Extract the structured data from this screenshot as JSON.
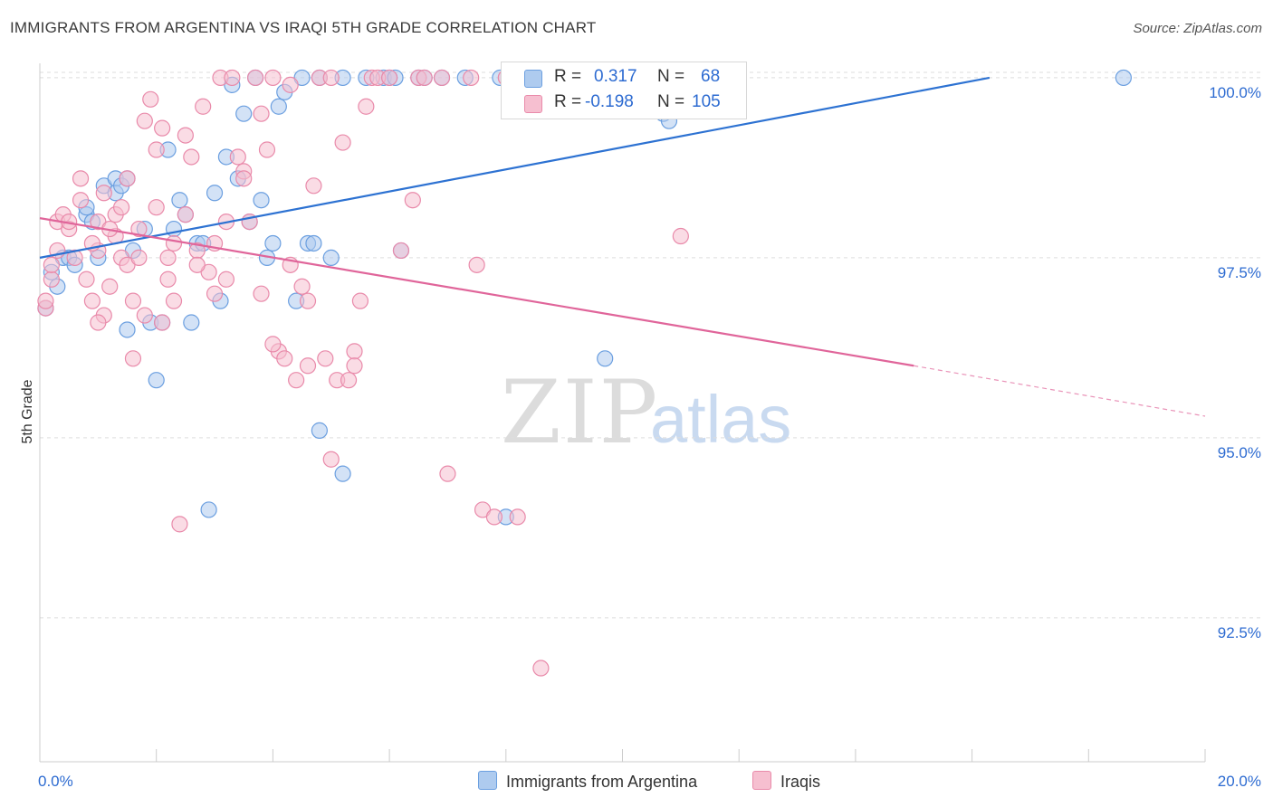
{
  "header": {
    "title": "IMMIGRANTS FROM ARGENTINA VS IRAQI 5TH GRADE CORRELATION CHART",
    "source": "Source: ZipAtlas.com"
  },
  "colors": {
    "blue_fill": "#aecbef",
    "blue_stroke": "#6b9fe0",
    "blue_line": "#2d72d2",
    "pink_fill": "#f6bfd0",
    "pink_stroke": "#e98aaa",
    "pink_line": "#e0659a",
    "value_blue": "#2d6bd1",
    "grid": "#dddddd"
  },
  "legend": {
    "rows": [
      {
        "r_label": "R =",
        "r_value": "0.317",
        "n_label": "N =",
        "n_value": "68"
      },
      {
        "r_label": "R =",
        "r_value": "-0.198",
        "n_label": "N =",
        "n_value": "105"
      }
    ]
  },
  "bottom_legend": {
    "series_a": "Immigrants from Argentina",
    "series_b": "Iraqis"
  },
  "watermark": {
    "zip": "ZIP",
    "atlas": "atlas"
  },
  "chart_data": {
    "type": "scatter",
    "title": "IMMIGRANTS FROM ARGENTINA VS IRAQI 5TH GRADE CORRELATION CHART",
    "xlabel": "",
    "ylabel": "5th Grade",
    "xlim": [
      0,
      20
    ],
    "ylim": [
      90.5,
      100.2
    ],
    "x_tick_labels": [
      "0.0%",
      "20.0%"
    ],
    "y_ticks": [
      92.5,
      95.0,
      97.5,
      100.0
    ],
    "y_tick_labels": [
      "92.5%",
      "95.0%",
      "97.5%",
      "100.0%"
    ],
    "series": [
      {
        "name": "Immigrants from Argentina",
        "R": 0.317,
        "N": 68,
        "trend": {
          "x": [
            0,
            16.3
          ],
          "y": [
            97.5,
            100.0
          ]
        },
        "points": [
          [
            0.1,
            96.8
          ],
          [
            0.2,
            97.3
          ],
          [
            0.3,
            97.1
          ],
          [
            0.4,
            97.5
          ],
          [
            0.5,
            97.5
          ],
          [
            0.6,
            97.4
          ],
          [
            0.8,
            98.1
          ],
          [
            0.8,
            98.2
          ],
          [
            0.9,
            98.0
          ],
          [
            1.0,
            97.5
          ],
          [
            1.1,
            98.5
          ],
          [
            1.3,
            98.6
          ],
          [
            1.3,
            98.4
          ],
          [
            1.4,
            98.5
          ],
          [
            1.5,
            98.6
          ],
          [
            1.6,
            97.6
          ],
          [
            1.8,
            97.9
          ],
          [
            1.9,
            96.6
          ],
          [
            2.0,
            95.8
          ],
          [
            2.1,
            96.6
          ],
          [
            2.2,
            99.0
          ],
          [
            2.3,
            97.9
          ],
          [
            2.4,
            98.3
          ],
          [
            2.5,
            98.1
          ],
          [
            2.6,
            96.6
          ],
          [
            2.7,
            97.7
          ],
          [
            2.8,
            97.7
          ],
          [
            2.9,
            94.0
          ],
          [
            3.0,
            98.4
          ],
          [
            3.1,
            96.9
          ],
          [
            3.2,
            98.9
          ],
          [
            3.3,
            99.9
          ],
          [
            3.4,
            98.6
          ],
          [
            3.5,
            99.5
          ],
          [
            3.6,
            98.0
          ],
          [
            3.7,
            100.0
          ],
          [
            3.8,
            98.3
          ],
          [
            3.9,
            97.5
          ],
          [
            4.0,
            97.7
          ],
          [
            4.1,
            99.6
          ],
          [
            4.2,
            99.8
          ],
          [
            4.4,
            96.9
          ],
          [
            4.5,
            100.0
          ],
          [
            4.6,
            97.7
          ],
          [
            4.7,
            97.7
          ],
          [
            4.8,
            100.0
          ],
          [
            4.8,
            95.1
          ],
          [
            5.0,
            97.5
          ],
          [
            5.2,
            100.0
          ],
          [
            5.2,
            94.5
          ],
          [
            5.6,
            100.0
          ],
          [
            5.9,
            100.0
          ],
          [
            6.0,
            100.0
          ],
          [
            6.1,
            100.0
          ],
          [
            6.2,
            97.6
          ],
          [
            6.5,
            100.0
          ],
          [
            6.6,
            100.0
          ],
          [
            6.9,
            100.0
          ],
          [
            7.3,
            100.0
          ],
          [
            7.9,
            100.0
          ],
          [
            8.0,
            93.9
          ],
          [
            8.2,
            100.0
          ],
          [
            9.4,
            100.0
          ],
          [
            9.7,
            96.1
          ],
          [
            10.7,
            99.5
          ],
          [
            10.8,
            99.4
          ],
          [
            18.6,
            100.0
          ],
          [
            1.5,
            96.5
          ]
        ]
      },
      {
        "name": "Iraqis",
        "R": -0.198,
        "N": 105,
        "trend": {
          "x": [
            0,
            15.0
          ],
          "y": [
            98.05,
            96.0
          ]
        },
        "trend_dashed": {
          "x": [
            15.0,
            20.0
          ],
          "y": [
            96.0,
            95.3
          ]
        },
        "points": [
          [
            0.1,
            96.8
          ],
          [
            0.2,
            97.2
          ],
          [
            0.3,
            97.6
          ],
          [
            0.3,
            98.0
          ],
          [
            0.4,
            98.1
          ],
          [
            0.5,
            97.9
          ],
          [
            0.6,
            97.5
          ],
          [
            0.7,
            98.3
          ],
          [
            0.7,
            98.6
          ],
          [
            0.8,
            97.2
          ],
          [
            0.9,
            96.9
          ],
          [
            1.0,
            98.0
          ],
          [
            1.0,
            97.6
          ],
          [
            1.1,
            96.7
          ],
          [
            1.1,
            98.4
          ],
          [
            1.2,
            97.1
          ],
          [
            1.3,
            97.8
          ],
          [
            1.3,
            98.1
          ],
          [
            1.4,
            97.5
          ],
          [
            1.5,
            97.4
          ],
          [
            1.5,
            98.6
          ],
          [
            1.6,
            96.1
          ],
          [
            1.6,
            96.9
          ],
          [
            1.7,
            97.9
          ],
          [
            1.7,
            97.5
          ],
          [
            1.8,
            99.4
          ],
          [
            1.9,
            99.7
          ],
          [
            2.0,
            99.0
          ],
          [
            2.0,
            98.2
          ],
          [
            2.1,
            99.3
          ],
          [
            2.2,
            97.2
          ],
          [
            2.2,
            97.5
          ],
          [
            2.3,
            96.9
          ],
          [
            2.4,
            93.8
          ],
          [
            2.5,
            99.2
          ],
          [
            2.6,
            98.9
          ],
          [
            2.7,
            97.6
          ],
          [
            2.8,
            99.6
          ],
          [
            2.9,
            97.3
          ],
          [
            3.0,
            97.0
          ],
          [
            3.1,
            100.0
          ],
          [
            3.2,
            97.2
          ],
          [
            3.3,
            100.0
          ],
          [
            3.4,
            98.9
          ],
          [
            3.5,
            98.7
          ],
          [
            3.6,
            98.0
          ],
          [
            3.7,
            100.0
          ],
          [
            3.8,
            99.5
          ],
          [
            3.9,
            99.0
          ],
          [
            4.0,
            100.0
          ],
          [
            4.1,
            96.2
          ],
          [
            4.2,
            96.1
          ],
          [
            4.3,
            99.9
          ],
          [
            4.4,
            95.8
          ],
          [
            4.5,
            97.1
          ],
          [
            4.6,
            96.9
          ],
          [
            4.7,
            98.5
          ],
          [
            4.8,
            100.0
          ],
          [
            4.9,
            96.1
          ],
          [
            5.0,
            100.0
          ],
          [
            5.1,
            95.8
          ],
          [
            5.2,
            99.1
          ],
          [
            5.3,
            95.8
          ],
          [
            5.4,
            96.2
          ],
          [
            5.5,
            96.9
          ],
          [
            5.6,
            99.6
          ],
          [
            5.7,
            100.0
          ],
          [
            5.8,
            100.0
          ],
          [
            6.0,
            100.0
          ],
          [
            6.2,
            97.6
          ],
          [
            6.4,
            98.3
          ],
          [
            6.5,
            100.0
          ],
          [
            6.6,
            100.0
          ],
          [
            6.9,
            100.0
          ],
          [
            7.0,
            94.5
          ],
          [
            7.4,
            100.0
          ],
          [
            7.5,
            97.4
          ],
          [
            8.0,
            100.0
          ],
          [
            8.2,
            93.9
          ],
          [
            8.3,
            100.0
          ],
          [
            8.6,
            91.8
          ],
          [
            11.0,
            97.8
          ],
          [
            0.2,
            97.4
          ],
          [
            0.5,
            98.0
          ],
          [
            0.9,
            97.7
          ],
          [
            1.2,
            97.9
          ],
          [
            1.4,
            98.2
          ],
          [
            1.8,
            96.7
          ],
          [
            2.1,
            96.6
          ],
          [
            2.3,
            97.7
          ],
          [
            2.5,
            98.1
          ],
          [
            2.7,
            97.4
          ],
          [
            3.0,
            97.7
          ],
          [
            3.2,
            98.0
          ],
          [
            3.5,
            98.6
          ],
          [
            3.8,
            97.0
          ],
          [
            4.0,
            96.3
          ],
          [
            4.3,
            97.4
          ],
          [
            4.6,
            96.0
          ],
          [
            5.0,
            94.7
          ],
          [
            5.4,
            96.0
          ],
          [
            7.6,
            94.0
          ],
          [
            7.8,
            93.9
          ],
          [
            0.1,
            96.9
          ],
          [
            1.0,
            96.6
          ]
        ]
      }
    ]
  }
}
